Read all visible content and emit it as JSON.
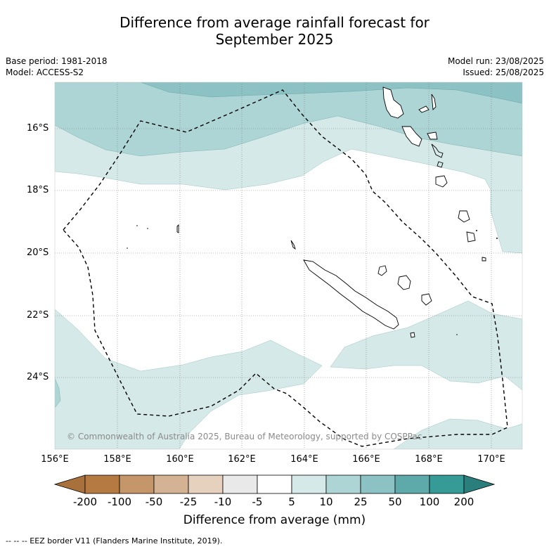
{
  "title_line1": "Difference from average rainfall forecast for",
  "title_line2": "September 2025",
  "base_period": "Base period: 1981-2018",
  "model": "Model: ACCESS-S2",
  "model_run": "Model run: 23/08/2025",
  "issued": "Issued: 25/08/2025",
  "copyright": "© Commonwealth of Australia 2025, Bureau of Meteorology, supported by COSPPac",
  "footnote": "--  --  -- EEZ border V11 (Flanders Marine Institute, 2019).",
  "lat_labels": [
    "16°S",
    "18°S",
    "20°S",
    "22°S",
    "24°S"
  ],
  "lon_labels": [
    "156°E",
    "158°E",
    "160°E",
    "162°E",
    "164°E",
    "166°E",
    "168°E",
    "170°E"
  ],
  "colorbar": {
    "label": "Difference from average (mm)",
    "ticks": [
      "-200",
      "-100",
      "-50",
      "-25",
      "-10",
      "-5",
      "5",
      "10",
      "25",
      "50",
      "100",
      "200"
    ],
    "colors": [
      "#a8703b",
      "#b47a42",
      "#c49669",
      "#d4b394",
      "#e6d1be",
      "#e9e9e9",
      "#ffffff",
      "#d5e9e8",
      "#aed5d5",
      "#8cc2c3",
      "#5eaaab",
      "#369a97",
      "#2a7f7d"
    ]
  },
  "colors": {
    "band_5_10": "#d5e9e8",
    "band_10_25": "#aed5d5",
    "band_25_50": "#8cc2c3",
    "eez_border": "#000000"
  }
}
